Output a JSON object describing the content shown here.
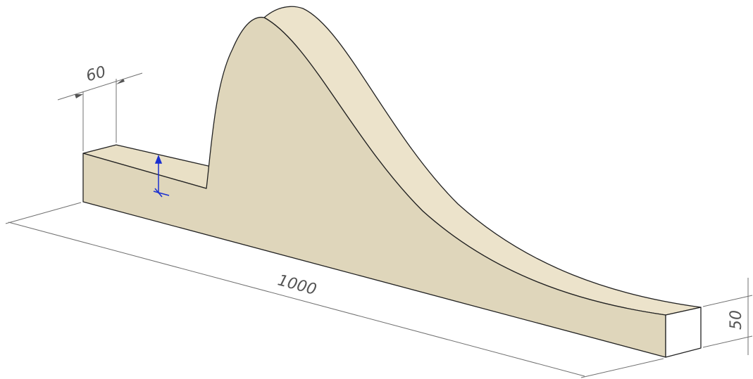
{
  "dimensions": {
    "top_width": "60",
    "length": "1000",
    "end_height": "50"
  }
}
